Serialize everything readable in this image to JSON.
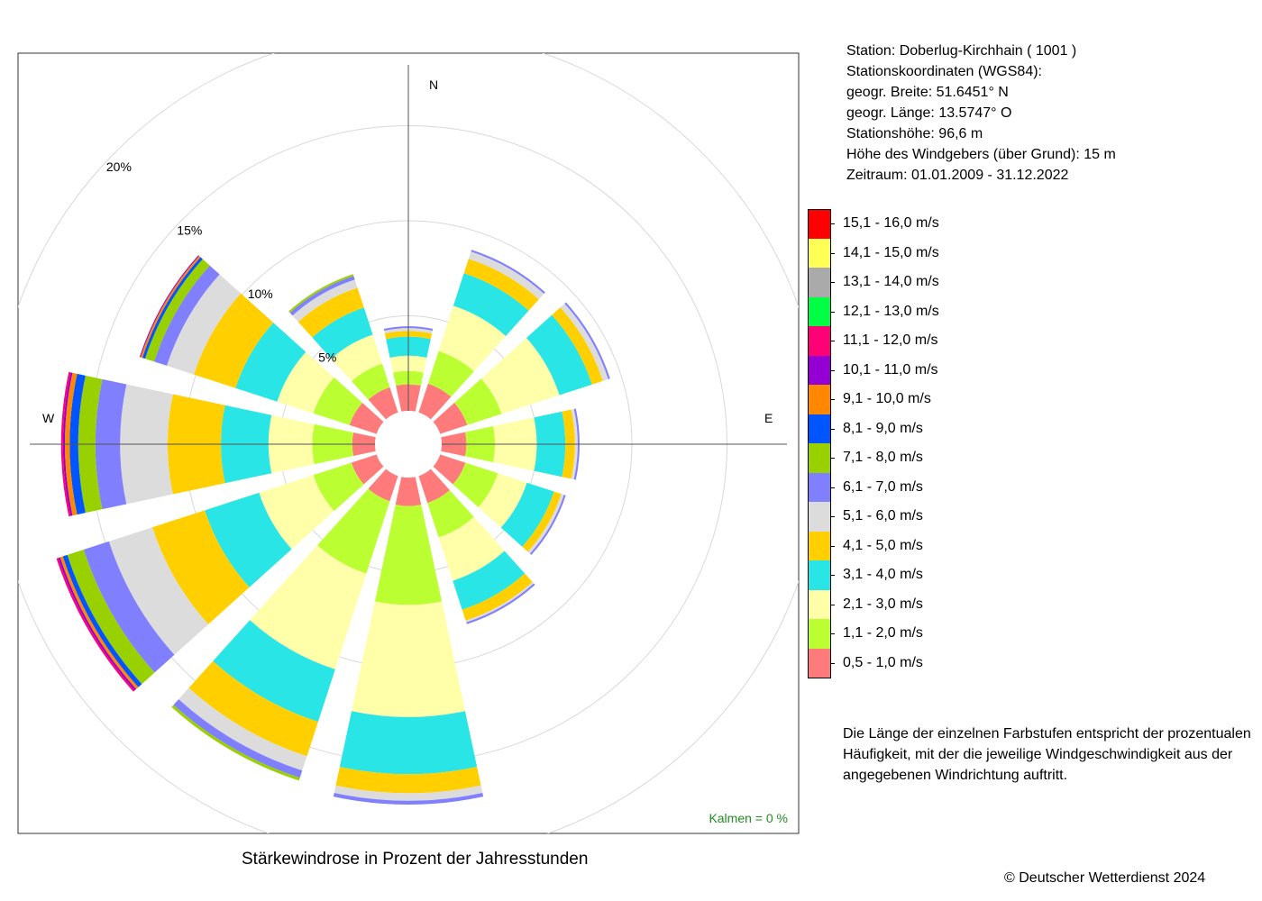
{
  "station_info": [
    "Station:  Doberlug-Kirchhain  ( 1001 )",
    "Stationskoordinaten (WGS84):",
    "geogr. Breite: 51.6451° N",
    "geogr. Länge: 13.5747° O",
    "Stationshöhe: 96,6 m",
    "Höhe des Windgebers (über Grund): 15 m",
    "Zeitraum: 01.01.2009 - 31.12.2022"
  ],
  "note": [
    "Die Länge der einzelnen Farbstufen entspricht der prozentualen",
    "Häufigkeit, mit der die jeweilige Windgeschwindigkeit aus der",
    "angegebenen Windrichtung auftritt."
  ],
  "copyright": "© Deutscher Wetterdienst  2024",
  "chart_data": {
    "type": "wind-rose",
    "title": "Stärkewindrose in Prozent der Jahresstunden",
    "directions": [
      "N",
      "NNE",
      "ENE",
      "E",
      "ESE",
      "SSE",
      "S",
      "SSW",
      "WSW",
      "W",
      "WNW",
      "NNW"
    ],
    "direction_degrees": [
      0,
      30,
      60,
      90,
      120,
      150,
      180,
      210,
      240,
      270,
      300,
      330
    ],
    "compass_labels": [
      "N",
      "E",
      "W"
    ],
    "ring_labels": [
      "5%",
      "10%",
      "15%",
      "20%"
    ],
    "ring_values": [
      5,
      10,
      15,
      20
    ],
    "calm": "Kalmen  =  0 %",
    "speed_classes": [
      {
        "label": "0,5 - 1,0 m/s",
        "color": "#ff7b7b"
      },
      {
        "label": "1,1 - 2,0 m/s",
        "color": "#bbff33"
      },
      {
        "label": "2,1 - 3,0 m/s",
        "color": "#ffffaa"
      },
      {
        "label": "3,1 - 4,0 m/s",
        "color": "#2ae5e5"
      },
      {
        "label": "4,1 - 5,0 m/s",
        "color": "#ffcf00"
      },
      {
        "label": "5,1 - 6,0 m/s",
        "color": "#dcdcdc"
      },
      {
        "label": "6,1 - 7,0 m/s",
        "color": "#8080ff"
      },
      {
        "label": "7,1 - 8,0 m/s",
        "color": "#99d100"
      },
      {
        "label": "8,1 - 9,0 m/s",
        "color": "#0055ff"
      },
      {
        "label": "9,1 - 10,0 m/s",
        "color": "#ff8800"
      },
      {
        "label": "10,1 - 11,0 m/s",
        "color": "#9400d3"
      },
      {
        "label": "11,1 - 12,0 m/s",
        "color": "#ff0077"
      },
      {
        "label": "12,1 - 13,0 m/s",
        "color": "#00ff44"
      },
      {
        "label": "13,1 - 14,0 m/s",
        "color": "#aaaaaa"
      },
      {
        "label": "14,1 - 15,0 m/s",
        "color": "#ffff55"
      },
      {
        "label": "15,1 - 16,0 m/s",
        "color": "#ff0000"
      }
    ],
    "cumulative_percent": {
      "N": [
        1.4,
        2.1,
        2.9,
        3.9,
        4.2,
        4.35,
        4.45
      ],
      "NNE": [
        1.6,
        3.4,
        5.9,
        7.7,
        8.5,
        8.9,
        9.0
      ],
      "ENE": [
        1.5,
        3.4,
        6.6,
        8.4,
        9.0,
        9.3,
        9.4
      ],
      "E": [
        1.3,
        2.8,
        5.0,
        6.5,
        7.0,
        7.15,
        7.25
      ],
      "ESE": [
        1.4,
        3.2,
        4.8,
        6.3,
        6.7,
        6.85,
        6.95
      ],
      "SSE": [
        1.5,
        3.4,
        5.8,
        7.4,
        8.0,
        8.1,
        8.2
      ],
      "S": [
        1.5,
        6.7,
        12.6,
        15.6,
        16.6,
        17.0,
        17.2
      ],
      "SSW": [
        1.4,
        5.4,
        10.7,
        13.6,
        15.5,
        16.3,
        16.7,
        16.85
      ],
      "WSW": [
        1.4,
        3.5,
        6.5,
        9.5,
        12.4,
        14.8,
        16.2,
        17.1,
        17.35,
        17.5,
        17.6,
        17.7
      ],
      "W": [
        1.2,
        3.3,
        5.6,
        8.1,
        10.9,
        13.4,
        14.7,
        15.6,
        16.05,
        16.3,
        16.4,
        16.5
      ],
      "WNW": [
        1.5,
        3.5,
        5.5,
        7.8,
        10.1,
        11.6,
        12.3,
        12.8,
        12.95,
        13.05,
        13.1
      ],
      "NNW": [
        1.4,
        2.7,
        4.3,
        5.8,
        6.9,
        7.35,
        7.55,
        7.65
      ]
    }
  }
}
